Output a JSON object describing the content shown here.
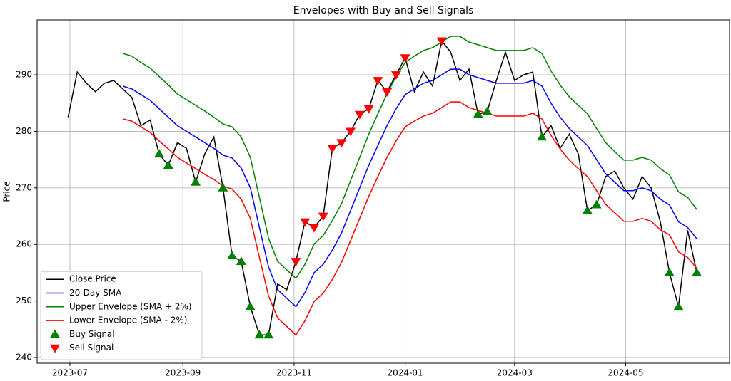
{
  "chart_data": {
    "type": "line",
    "title": "Envelopes with Buy and Sell Signals",
    "y_label": "Price",
    "x": [
      19538,
      19543,
      19548,
      19553,
      19558,
      19563,
      19568,
      19573,
      19578,
      19583,
      19588,
      19593,
      19598,
      19603,
      19608,
      19613,
      19618,
      19623,
      19628,
      19633,
      19638,
      19643,
      19648,
      19653,
      19658,
      19663,
      19668,
      19673,
      19678,
      19683,
      19688,
      19693,
      19698,
      19703,
      19708,
      19713,
      19718,
      19723,
      19728,
      19733,
      19738,
      19743,
      19748,
      19753,
      19758,
      19763,
      19768,
      19773,
      19778,
      19783,
      19788,
      19793,
      19798,
      19803,
      19808,
      19813,
      19818,
      19823,
      19828,
      19833,
      19838,
      19843,
      19848,
      19853,
      19858,
      19863,
      19868,
      19873,
      19878,
      19883
    ],
    "series": [
      {
        "name": "Close Price",
        "color": "#000000",
        "values": [
          282.5,
          290.5,
          288.5,
          287,
          288.5,
          289,
          287.5,
          286,
          281,
          282,
          276,
          274,
          278,
          277,
          271,
          276,
          279,
          270,
          258,
          257,
          249,
          244,
          244,
          253,
          252,
          257,
          264,
          263,
          265,
          277,
          278,
          280,
          283,
          284,
          289,
          287,
          290,
          293,
          287,
          290.5,
          288,
          296,
          294,
          289,
          291,
          283,
          283.5,
          289,
          294,
          289,
          290,
          290.5,
          279,
          281,
          277,
          279.5,
          276,
          266,
          267,
          272,
          273,
          270,
          268,
          272,
          270,
          264,
          255,
          249,
          262.5,
          255
        ]
      },
      {
        "name": "20-Day SMA",
        "color": "#0000ff",
        "values": [
          null,
          null,
          null,
          null,
          null,
          null,
          288,
          287.5,
          286.5,
          285.5,
          284,
          282.5,
          281,
          280,
          279,
          278,
          277,
          275.8,
          275.3,
          273.5,
          270,
          263,
          256,
          252,
          250.5,
          249,
          251.5,
          255,
          256.5,
          259,
          262,
          266,
          270,
          274,
          277.5,
          281,
          284,
          286.5,
          287.5,
          288.5,
          289,
          290,
          291,
          291,
          290,
          289.5,
          289,
          288.5,
          288.5,
          288.5,
          288.5,
          289,
          288,
          285,
          282.5,
          280.5,
          279,
          277.5,
          275,
          272.5,
          271,
          269.5,
          269.5,
          270,
          269.5,
          268,
          267,
          264,
          263,
          261
        ]
      },
      {
        "name": "Upper Envelope (SMA + 2%)",
        "color": "#008000",
        "values": [
          null,
          null,
          null,
          null,
          null,
          null,
          293.8,
          293.3,
          292.2,
          291.2,
          289.7,
          288.2,
          286.6,
          285.6,
          284.6,
          283.6,
          282.5,
          281.3,
          280.8,
          279.0,
          275.4,
          268.3,
          261.1,
          257.0,
          255.5,
          254.0,
          256.5,
          260.1,
          261.6,
          264.2,
          267.2,
          271.3,
          275.4,
          279.5,
          283.1,
          286.6,
          289.7,
          292.2,
          293.3,
          294.3,
          294.8,
          295.8,
          296.8,
          296.8,
          295.8,
          295.3,
          294.8,
          294.3,
          294.3,
          294.3,
          294.3,
          294.8,
          293.8,
          290.7,
          288.2,
          286.1,
          284.6,
          283.1,
          280.5,
          278.0,
          276.4,
          274.9,
          274.9,
          275.4,
          274.9,
          273.4,
          272.3,
          269.3,
          268.3,
          266.2
        ]
      },
      {
        "name": "Lower Envelope (SMA - 2%)",
        "color": "#ff0000",
        "values": [
          null,
          null,
          null,
          null,
          null,
          null,
          282.2,
          281.8,
          280.8,
          279.8,
          278.3,
          276.9,
          275.4,
          274.4,
          273.4,
          272.4,
          271.5,
          270.3,
          269.8,
          268.0,
          264.6,
          257.7,
          250.9,
          247.0,
          245.5,
          244.0,
          246.5,
          249.9,
          251.4,
          253.8,
          256.8,
          260.7,
          264.6,
          268.5,
          272.0,
          275.4,
          278.3,
          280.8,
          281.8,
          282.7,
          283.2,
          284.2,
          285.2,
          285.2,
          284.2,
          283.7,
          283.2,
          282.7,
          282.7,
          282.7,
          282.7,
          283.2,
          282.2,
          279.3,
          276.9,
          274.9,
          273.4,
          272.0,
          269.5,
          267.1,
          265.6,
          264.1,
          264.1,
          264.6,
          264.1,
          262.6,
          261.7,
          258.7,
          257.7,
          255.8
        ]
      },
      {
        "name": "Buy Signal",
        "type": "scatter",
        "marker": "triangle-up",
        "color": "#008000",
        "x": [
          19588,
          19593,
          19608,
          19623,
          19628,
          19633,
          19638,
          19643,
          19648,
          19763,
          19768,
          19798,
          19823,
          19828,
          19868,
          19873,
          19883
        ],
        "values": [
          276,
          274,
          271,
          270,
          258,
          257,
          249,
          244,
          244,
          283,
          283.5,
          279,
          266,
          267,
          255,
          249,
          255
        ]
      },
      {
        "name": "Sell Signal",
        "type": "scatter",
        "marker": "triangle-down",
        "color": "#ff0000",
        "x": [
          19663,
          19668,
          19673,
          19678,
          19683,
          19688,
          19693,
          19698,
          19703,
          19708,
          19713,
          19718,
          19723,
          19743
        ],
        "values": [
          257,
          264,
          263,
          265,
          277,
          278,
          280,
          283,
          284,
          289,
          287,
          290,
          293,
          296
        ]
      }
    ],
    "xlim": [
      19521,
      19901
    ],
    "xticks": [
      {
        "value": 19539,
        "label": "2023-07"
      },
      {
        "value": 19601,
        "label": "2023-09"
      },
      {
        "value": 19662,
        "label": "2023-11"
      },
      {
        "value": 19723,
        "label": "2024-01"
      },
      {
        "value": 19783,
        "label": "2024-03"
      },
      {
        "value": 19844,
        "label": "2024-05"
      }
    ],
    "ylim": [
      239,
      299.7
    ],
    "yticks": [
      240,
      250,
      260,
      270,
      280,
      290
    ],
    "grid": true,
    "legend": "lower left"
  }
}
